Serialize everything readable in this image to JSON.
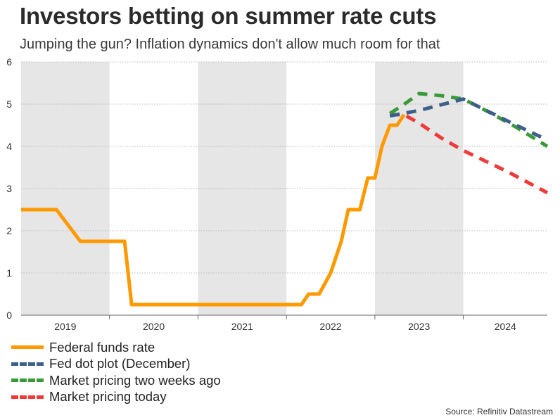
{
  "header": {
    "title": "Investors betting on summer rate cuts",
    "subtitle": "Jumping the gun? Inflation dynamics don't allow much room for that"
  },
  "source": "Source: Refinitiv Datastream",
  "colors": {
    "fed_funds": "#ff9900",
    "dot_plot": "#3d5f8a",
    "two_weeks": "#3a9a3a",
    "today": "#f03a3a",
    "band": "#e6e6e6",
    "grid": "#b9b9b9",
    "axis_text": "#333333"
  },
  "chart_data": {
    "type": "line",
    "title": "Investors betting on summer rate cuts",
    "xlabel": "",
    "ylabel": "",
    "ylim": [
      0,
      6
    ],
    "yticks": [
      "0",
      "1",
      "2",
      "3",
      "4",
      "5",
      "6"
    ],
    "xlim": [
      2019.0,
      2024.95
    ],
    "year_labels": [
      "2019",
      "2020",
      "2021",
      "2022",
      "2023",
      "2024"
    ],
    "shaded_years": [
      "2019",
      "2021",
      "2023"
    ],
    "grid": "horizontal dotted",
    "legend_position": "bottom-left",
    "series": [
      {
        "name": "Federal funds rate",
        "style": "solid",
        "color_key": "fed_funds",
        "x": [
          2019.0,
          2019.4,
          2019.67,
          2019.92,
          2020.17,
          2020.25,
          2021.0,
          2022.0,
          2022.17,
          2022.25,
          2022.37,
          2022.5,
          2022.62,
          2022.7,
          2022.83,
          2022.92,
          2023.0,
          2023.08,
          2023.17,
          2023.25,
          2023.33
        ],
        "y": [
          2.5,
          2.5,
          1.75,
          1.75,
          1.75,
          0.25,
          0.25,
          0.25,
          0.25,
          0.5,
          0.5,
          1.0,
          1.75,
          2.5,
          2.5,
          3.25,
          3.25,
          4.0,
          4.5,
          4.5,
          4.75
        ]
      },
      {
        "name": "Fed dot plot (December)",
        "style": "dashed",
        "color_key": "dot_plot",
        "x": [
          2023.17,
          2023.5,
          2024.0,
          2024.5,
          2024.95
        ],
        "y": [
          4.72,
          4.85,
          5.12,
          4.6,
          4.15
        ]
      },
      {
        "name": "Market pricing two weeks ago",
        "style": "dashed",
        "color_key": "two_weeks",
        "x": [
          2023.17,
          2023.3,
          2023.5,
          2023.75,
          2024.0,
          2024.3,
          2024.6,
          2024.95
        ],
        "y": [
          4.78,
          4.95,
          5.25,
          5.2,
          5.12,
          4.8,
          4.45,
          4.0
        ]
      },
      {
        "name": "Market pricing today",
        "style": "dashed",
        "color_key": "today",
        "x": [
          2023.17,
          2023.33,
          2023.5,
          2023.75,
          2024.0,
          2024.5,
          2024.95
        ],
        "y": [
          4.75,
          4.75,
          4.55,
          4.2,
          3.9,
          3.4,
          2.9
        ]
      }
    ]
  }
}
